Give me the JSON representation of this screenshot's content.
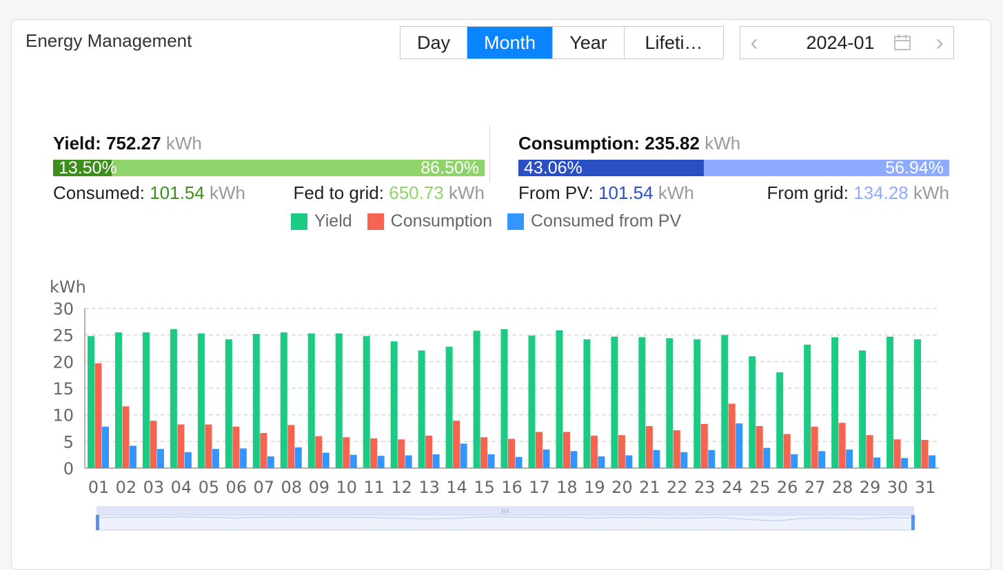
{
  "panel": {
    "title": "Energy Management"
  },
  "period_tabs": [
    {
      "label": "Day",
      "active": false
    },
    {
      "label": "Month",
      "active": true
    },
    {
      "label": "Year",
      "active": false
    },
    {
      "label": "Lifeti…",
      "active": false
    }
  ],
  "date_picker": {
    "value": "2024-01",
    "prev_icon": "chevron-left-icon",
    "next_icon": "chevron-right-icon",
    "calendar_icon": "calendar-icon"
  },
  "yield": {
    "label": "Yield:",
    "value": "752.27",
    "unit": "kWh",
    "bar_left_pct": "13.50%",
    "bar_right_pct": "86.50%",
    "bar_left_fraction": 0.135,
    "left_color": "#3e8e1d",
    "right_color": "#8fd46a",
    "consumed_label": "Consumed:",
    "consumed_value": "101.54",
    "consumed_unit": "kWh",
    "fed_label": "Fed to grid:",
    "fed_value": "650.73",
    "fed_unit": "kWh"
  },
  "consumption": {
    "label": "Consumption:",
    "value": "235.82",
    "unit": "kWh",
    "bar_left_pct": "43.06%",
    "bar_right_pct": "56.94%",
    "bar_left_fraction": 0.4306,
    "left_color": "#2a4fc5",
    "right_color": "#8eabff",
    "pv_label": "From PV:",
    "pv_value": "101.54",
    "pv_unit": "kWh",
    "grid_label": "From grid:",
    "grid_value": "134.28",
    "grid_unit": "kWh"
  },
  "legend": [
    {
      "label": "Yield",
      "color": "#1bcb83"
    },
    {
      "label": "Consumption",
      "color": "#f56450"
    },
    {
      "label": "Consumed from PV",
      "color": "#3396ff"
    }
  ],
  "chart_data": {
    "type": "bar",
    "ylabel": "kWh",
    "ylim": [
      0,
      30
    ],
    "yticks": [
      0,
      5,
      10,
      15,
      20,
      25,
      30
    ],
    "grid": true,
    "legend_position": "top-center",
    "categories": [
      "01",
      "02",
      "03",
      "04",
      "05",
      "06",
      "07",
      "08",
      "09",
      "10",
      "11",
      "12",
      "13",
      "14",
      "15",
      "16",
      "17",
      "18",
      "19",
      "20",
      "21",
      "22",
      "23",
      "24",
      "25",
      "26",
      "27",
      "28",
      "29",
      "30",
      "31"
    ],
    "series": [
      {
        "name": "Yield",
        "color": "#1bcb83",
        "values": [
          24.8,
          25.5,
          25.5,
          26.1,
          25.3,
          24.2,
          25.2,
          25.5,
          25.3,
          25.3,
          24.8,
          23.8,
          22.1,
          22.8,
          25.8,
          26.1,
          24.9,
          25.9,
          24.2,
          24.7,
          24.6,
          24.4,
          24.2,
          25.0,
          21.0,
          18.0,
          23.2,
          24.6,
          22.1,
          24.7,
          24.2
        ]
      },
      {
        "name": "Consumption",
        "color": "#f56450",
        "values": [
          19.7,
          11.6,
          8.9,
          8.2,
          8.2,
          7.8,
          6.6,
          8.1,
          6.0,
          5.8,
          5.6,
          5.4,
          6.1,
          8.9,
          5.8,
          5.5,
          6.8,
          6.8,
          6.1,
          6.2,
          7.9,
          7.1,
          8.3,
          12.1,
          7.9,
          6.4,
          7.8,
          8.5,
          6.2,
          5.4,
          5.3
        ]
      },
      {
        "name": "Consumed from PV",
        "color": "#3396ff",
        "values": [
          7.8,
          4.2,
          3.6,
          3.0,
          3.6,
          3.7,
          2.2,
          3.9,
          2.9,
          2.5,
          2.3,
          2.4,
          2.6,
          4.6,
          2.6,
          2.1,
          3.5,
          3.2,
          2.2,
          2.4,
          3.4,
          3.0,
          3.4,
          8.4,
          3.8,
          2.6,
          3.2,
          3.5,
          2.0,
          1.9,
          2.4
        ]
      }
    ]
  }
}
